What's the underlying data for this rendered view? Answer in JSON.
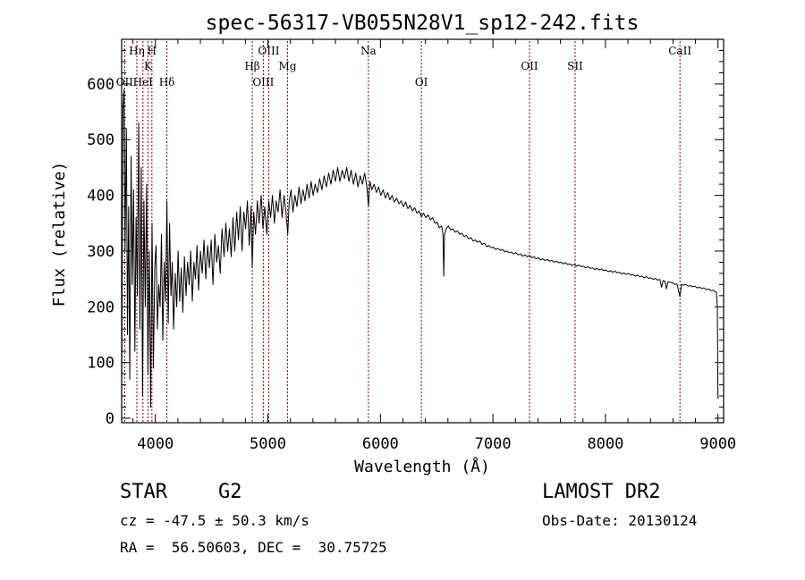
{
  "chart_data": {
    "type": "line",
    "title": "spec-56317-VB055N28V1_sp12-242.fits",
    "xlabel": "Wavelength (Å)",
    "ylabel": "Flux (relative)",
    "xlim": [
      3700,
      9050
    ],
    "ylim": [
      -8,
      680
    ],
    "x_ticks": [
      4000,
      5000,
      6000,
      7000,
      8000,
      9000
    ],
    "y_ticks": [
      0,
      100,
      200,
      300,
      400,
      500,
      600
    ],
    "grid": false,
    "line_color": "#000000",
    "marker_color": "#8b0000",
    "lines": [
      {
        "label": "OII",
        "x": 3727,
        "row": 3
      },
      {
        "label": "Hη",
        "x": 3835,
        "row": 1
      },
      {
        "label": "HeI",
        "x": 3889,
        "row": 3
      },
      {
        "label": "K",
        "x": 3934,
        "row": 2
      },
      {
        "label": "H",
        "x": 3969,
        "row": 1
      },
      {
        "label": "Hδ",
        "x": 4102,
        "row": 3
      },
      {
        "label": "Hβ",
        "x": 4861,
        "row": 2
      },
      {
        "label": "OIII",
        "x": 4959,
        "row": 3
      },
      {
        "label": "OIII",
        "x": 5007,
        "row": 1
      },
      {
        "label": "Mg",
        "x": 5175,
        "row": 2
      },
      {
        "label": "Na",
        "x": 5893,
        "row": 1
      },
      {
        "label": "OI",
        "x": 6364,
        "row": 3
      },
      {
        "label": "OII",
        "x": 7325,
        "row": 2
      },
      {
        "label": "SII",
        "x": 7730,
        "row": 2
      },
      {
        "label": "CaII",
        "x": 8662,
        "row": 1
      }
    ],
    "spectrum": [
      [
        3700,
        30
      ],
      [
        3712,
        560
      ],
      [
        3722,
        590
      ],
      [
        3730,
        300
      ],
      [
        3742,
        520
      ],
      [
        3752,
        150
      ],
      [
        3762,
        380
      ],
      [
        3772,
        70
      ],
      [
        3784,
        470
      ],
      [
        3794,
        240
      ],
      [
        3806,
        410
      ],
      [
        3818,
        120
      ],
      [
        3828,
        360
      ],
      [
        3840,
        220
      ],
      [
        3852,
        530
      ],
      [
        3862,
        160
      ],
      [
        3874,
        450
      ],
      [
        3886,
        40
      ],
      [
        3898,
        390
      ],
      [
        3910,
        200
      ],
      [
        3922,
        420
      ],
      [
        3934,
        80
      ],
      [
        3946,
        300
      ],
      [
        3958,
        20
      ],
      [
        3970,
        350
      ],
      [
        3982,
        90
      ],
      [
        3994,
        270
      ],
      [
        4006,
        310
      ],
      [
        4018,
        160
      ],
      [
        4030,
        240
      ],
      [
        4042,
        200
      ],
      [
        4054,
        330
      ],
      [
        4066,
        140
      ],
      [
        4078,
        280
      ],
      [
        4090,
        210
      ],
      [
        4102,
        390
      ],
      [
        4114,
        170
      ],
      [
        4126,
        350
      ],
      [
        4138,
        220
      ],
      [
        4150,
        280
      ],
      [
        4162,
        160
      ],
      [
        4176,
        260
      ],
      [
        4190,
        200
      ],
      [
        4202,
        300
      ],
      [
        4216,
        210
      ],
      [
        4230,
        270
      ],
      [
        4244,
        190
      ],
      [
        4258,
        290
      ],
      [
        4272,
        220
      ],
      [
        4286,
        280
      ],
      [
        4300,
        240
      ],
      [
        4314,
        300
      ],
      [
        4328,
        210
      ],
      [
        4342,
        280
      ],
      [
        4356,
        250
      ],
      [
        4370,
        310
      ],
      [
        4384,
        230
      ],
      [
        4400,
        300
      ],
      [
        4416,
        260
      ],
      [
        4432,
        320
      ],
      [
        4448,
        250
      ],
      [
        4464,
        310
      ],
      [
        4480,
        270
      ],
      [
        4496,
        320
      ],
      [
        4512,
        240
      ],
      [
        4528,
        330
      ],
      [
        4544,
        280
      ],
      [
        4560,
        310
      ],
      [
        4576,
        260
      ],
      [
        4592,
        340
      ],
      [
        4610,
        290
      ],
      [
        4626,
        350
      ],
      [
        4642,
        300
      ],
      [
        4658,
        340
      ],
      [
        4674,
        290
      ],
      [
        4690,
        360
      ],
      [
        4706,
        300
      ],
      [
        4722,
        370
      ],
      [
        4738,
        320
      ],
      [
        4754,
        380
      ],
      [
        4770,
        300
      ],
      [
        4786,
        370
      ],
      [
        4802,
        340
      ],
      [
        4818,
        390
      ],
      [
        4834,
        310
      ],
      [
        4850,
        380
      ],
      [
        4861,
        270
      ],
      [
        4874,
        370
      ],
      [
        4890,
        330
      ],
      [
        4906,
        390
      ],
      [
        4922,
        350
      ],
      [
        4940,
        400
      ],
      [
        4956,
        340
      ],
      [
        4972,
        380
      ],
      [
        4990,
        330
      ],
      [
        5008,
        390
      ],
      [
        5024,
        360
      ],
      [
        5040,
        400
      ],
      [
        5058,
        350
      ],
      [
        5074,
        390
      ],
      [
        5090,
        370
      ],
      [
        5108,
        410
      ],
      [
        5126,
        360
      ],
      [
        5144,
        400
      ],
      [
        5160,
        370
      ],
      [
        5176,
        330
      ],
      [
        5190,
        390
      ],
      [
        5206,
        410
      ],
      [
        5222,
        370
      ],
      [
        5240,
        400
      ],
      [
        5258,
        380
      ],
      [
        5276,
        415
      ],
      [
        5294,
        385
      ],
      [
        5312,
        410
      ],
      [
        5330,
        390
      ],
      [
        5348,
        420
      ],
      [
        5366,
        395
      ],
      [
        5384,
        425
      ],
      [
        5402,
        400
      ],
      [
        5420,
        420
      ],
      [
        5440,
        405
      ],
      [
        5460,
        430
      ],
      [
        5480,
        410
      ],
      [
        5500,
        435
      ],
      [
        5520,
        415
      ],
      [
        5540,
        440
      ],
      [
        5560,
        420
      ],
      [
        5580,
        445
      ],
      [
        5600,
        425
      ],
      [
        5620,
        450
      ],
      [
        5640,
        425
      ],
      [
        5660,
        445
      ],
      [
        5680,
        430
      ],
      [
        5700,
        450
      ],
      [
        5720,
        425
      ],
      [
        5740,
        445
      ],
      [
        5760,
        420
      ],
      [
        5780,
        440
      ],
      [
        5800,
        415
      ],
      [
        5820,
        435
      ],
      [
        5840,
        420
      ],
      [
        5860,
        440
      ],
      [
        5880,
        415
      ],
      [
        5893,
        380
      ],
      [
        5906,
        425
      ],
      [
        5924,
        410
      ],
      [
        5944,
        420
      ],
      [
        5964,
        405
      ],
      [
        5984,
        415
      ],
      [
        6004,
        400
      ],
      [
        6024,
        410
      ],
      [
        6044,
        395
      ],
      [
        6064,
        405
      ],
      [
        6084,
        392
      ],
      [
        6104,
        400
      ],
      [
        6124,
        388
      ],
      [
        6144,
        395
      ],
      [
        6164,
        385
      ],
      [
        6184,
        390
      ],
      [
        6204,
        380
      ],
      [
        6224,
        388
      ],
      [
        6244,
        376
      ],
      [
        6264,
        382
      ],
      [
        6284,
        372
      ],
      [
        6304,
        378
      ],
      [
        6324,
        368
      ],
      [
        6344,
        372
      ],
      [
        6364,
        362
      ],
      [
        6384,
        368
      ],
      [
        6404,
        360
      ],
      [
        6424,
        365
      ],
      [
        6444,
        356
      ],
      [
        6464,
        360
      ],
      [
        6484,
        350
      ],
      [
        6504,
        352
      ],
      [
        6524,
        342
      ],
      [
        6544,
        345
      ],
      [
        6556,
        330
      ],
      [
        6563,
        255
      ],
      [
        6570,
        330
      ],
      [
        6584,
        340
      ],
      [
        6604,
        345
      ],
      [
        6624,
        338
      ],
      [
        6644,
        340
      ],
      [
        6664,
        334
      ],
      [
        6684,
        336
      ],
      [
        6704,
        330
      ],
      [
        6724,
        332
      ],
      [
        6744,
        326
      ],
      [
        6764,
        328
      ],
      [
        6784,
        322
      ],
      [
        6804,
        324
      ],
      [
        6824,
        318
      ],
      [
        6844,
        320
      ],
      [
        6864,
        316
      ],
      [
        6884,
        318
      ],
      [
        6904,
        312
      ],
      [
        6924,
        314
      ],
      [
        6944,
        308
      ],
      [
        6964,
        310
      ],
      [
        6984,
        306
      ],
      [
        7004,
        307
      ],
      [
        7024,
        303
      ],
      [
        7044,
        305
      ],
      [
        7064,
        301
      ],
      [
        7084,
        303
      ],
      [
        7104,
        299
      ],
      [
        7124,
        300
      ],
      [
        7144,
        297
      ],
      [
        7164,
        298
      ],
      [
        7184,
        295
      ],
      [
        7204,
        297
      ],
      [
        7224,
        293
      ],
      [
        7244,
        295
      ],
      [
        7264,
        291
      ],
      [
        7284,
        293
      ],
      [
        7304,
        290
      ],
      [
        7324,
        292
      ],
      [
        7344,
        288
      ],
      [
        7364,
        290
      ],
      [
        7384,
        286
      ],
      [
        7404,
        288
      ],
      [
        7424,
        284
      ],
      [
        7444,
        286
      ],
      [
        7464,
        283
      ],
      [
        7484,
        285
      ],
      [
        7504,
        282
      ],
      [
        7524,
        283
      ],
      [
        7544,
        280
      ],
      [
        7564,
        282
      ],
      [
        7584,
        279
      ],
      [
        7604,
        280
      ],
      [
        7624,
        277
      ],
      [
        7644,
        279
      ],
      [
        7664,
        276
      ],
      [
        7684,
        277
      ],
      [
        7704,
        274
      ],
      [
        7724,
        276
      ],
      [
        7744,
        273
      ],
      [
        7764,
        275
      ],
      [
        7784,
        272
      ],
      [
        7804,
        273
      ],
      [
        7824,
        270
      ],
      [
        7844,
        272
      ],
      [
        7864,
        269
      ],
      [
        7884,
        270
      ],
      [
        7904,
        267
      ],
      [
        7924,
        269
      ],
      [
        7944,
        266
      ],
      [
        7964,
        268
      ],
      [
        7984,
        265
      ],
      [
        8004,
        266
      ],
      [
        8024,
        263
      ],
      [
        8044,
        265
      ],
      [
        8064,
        262
      ],
      [
        8084,
        264
      ],
      [
        8104,
        261
      ],
      [
        8124,
        262
      ],
      [
        8144,
        259
      ],
      [
        8164,
        261
      ],
      [
        8184,
        258
      ],
      [
        8204,
        260
      ],
      [
        8224,
        257
      ],
      [
        8244,
        258
      ],
      [
        8264,
        255
      ],
      [
        8284,
        257
      ],
      [
        8304,
        254
      ],
      [
        8324,
        255
      ],
      [
        8344,
        252
      ],
      [
        8364,
        254
      ],
      [
        8384,
        251
      ],
      [
        8404,
        252
      ],
      [
        8424,
        249
      ],
      [
        8444,
        251
      ],
      [
        8464,
        248
      ],
      [
        8484,
        249
      ],
      [
        8498,
        235
      ],
      [
        8512,
        247
      ],
      [
        8528,
        246
      ],
      [
        8542,
        232
      ],
      [
        8556,
        245
      ],
      [
        8576,
        244
      ],
      [
        8596,
        243
      ],
      [
        8616,
        240
      ],
      [
        8636,
        241
      ],
      [
        8650,
        228
      ],
      [
        8662,
        218
      ],
      [
        8676,
        240
      ],
      [
        8696,
        239
      ],
      [
        8716,
        240
      ],
      [
        8736,
        237
      ],
      [
        8756,
        238
      ],
      [
        8776,
        236
      ],
      [
        8796,
        237
      ],
      [
        8816,
        234
      ],
      [
        8836,
        235
      ],
      [
        8856,
        233
      ],
      [
        8876,
        234
      ],
      [
        8896,
        231
      ],
      [
        8916,
        232
      ],
      [
        8936,
        229
      ],
      [
        8956,
        230
      ],
      [
        8976,
        227
      ],
      [
        8986,
        226
      ],
      [
        8994,
        200
      ],
      [
        9000,
        35
      ]
    ]
  },
  "footer": {
    "object_class": "STAR",
    "subclass": "G2",
    "survey": "LAMOST DR2",
    "cz": "cz = -47.5 ± 50.3 km/s",
    "obs_date": "Obs-Date: 20130124",
    "coords": "RA =  56.50603, DEC =  30.75725"
  }
}
